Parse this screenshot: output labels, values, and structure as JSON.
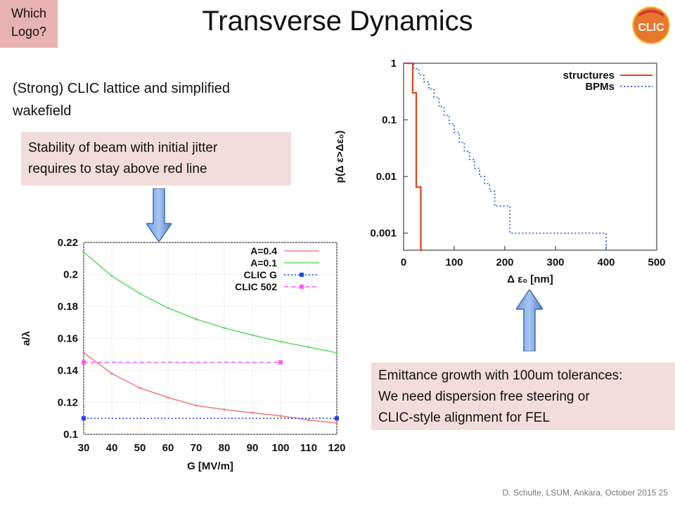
{
  "badge": {
    "text_line1": "Which",
    "text_line2": "Logo?"
  },
  "slide": {
    "title": "Transverse Dynamics"
  },
  "logo": {
    "text": "CLIC",
    "icon": "clic-logo-icon",
    "colors": [
      "#e8772e",
      "#d63a2a",
      "#f4c542"
    ]
  },
  "intro": {
    "line1": "(Strong) CLIC lattice and simplified",
    "line2": "wakefield"
  },
  "note_stability": {
    "line1": "Stability of beam with initial jitter",
    "line2": "requires to stay above red line"
  },
  "note_emittance": {
    "line1": "Emittance growth with 100um tolerances:",
    "line2": "We need dispersion free steering or",
    "line3": "CLIC-style alignment for FEL"
  },
  "arrows": {
    "icon_down": "down-arrow-icon",
    "icon_up": "up-arrow-icon",
    "color": "#4f7fc4"
  },
  "footer": {
    "text": "D. Schulte, LSUM, Ankara, October 2015",
    "page": "25"
  },
  "chart_data": [
    {
      "type": "line",
      "xlabel": "G [MV/m]",
      "ylabel": "a/λ",
      "xlim": [
        30,
        120
      ],
      "ylim": [
        0.1,
        0.22
      ],
      "xticks": [
        30,
        40,
        50,
        60,
        70,
        80,
        90,
        100,
        110,
        120
      ],
      "yticks": [
        0.1,
        0.12,
        0.14,
        0.16,
        0.18,
        0.2,
        0.22
      ],
      "xtick_labels": [
        "30",
        "40",
        "50",
        "60",
        "70",
        "80",
        "90",
        "100",
        "110",
        "120"
      ],
      "ytick_labels": [
        "0.1",
        "0.12",
        "0.14",
        "0.16",
        "0.18",
        "0.2",
        "0.22"
      ],
      "grid": true,
      "legend_position": "top-right",
      "series": [
        {
          "name": "A=0.4",
          "color": "#f08080",
          "style": "solid",
          "marker": "dot",
          "x": [
            30,
            40,
            50,
            60,
            70,
            80,
            90,
            100,
            110,
            120
          ],
          "y": [
            0.151,
            0.138,
            0.129,
            0.123,
            0.118,
            0.1155,
            0.1135,
            0.1115,
            0.109,
            0.107
          ]
        },
        {
          "name": "A=0.1",
          "color": "#66dd66",
          "style": "solid",
          "marker": "dot",
          "x": [
            30,
            40,
            50,
            60,
            70,
            80,
            90,
            100,
            110,
            120
          ],
          "y": [
            0.214,
            0.199,
            0.188,
            0.179,
            0.172,
            0.1665,
            0.162,
            0.158,
            0.1545,
            0.151
          ]
        },
        {
          "name": "CLIC G",
          "color": "#2244ee",
          "style": "dotted",
          "marker": "square",
          "x": [
            30,
            120
          ],
          "y": [
            0.11,
            0.11
          ]
        },
        {
          "name": "CLIC 502",
          "color": "#ff55ff",
          "style": "dashed",
          "marker": "square",
          "x": [
            30,
            100
          ],
          "y": [
            0.145,
            0.145
          ]
        }
      ]
    },
    {
      "type": "line",
      "xlabel": "Δ ε₀ [nm]",
      "ylabel": "p(Δ ε>Δε₀)",
      "xlim": [
        0,
        500
      ],
      "ylim": [
        0.0005,
        1
      ],
      "yscale": "log",
      "xticks": [
        0,
        100,
        200,
        300,
        400,
        500
      ],
      "yticks": [
        1,
        0.1,
        0.01,
        0.001
      ],
      "xtick_labels": [
        "0",
        "100",
        "200",
        "300",
        "400",
        "500"
      ],
      "ytick_labels": [
        "1",
        "0.1",
        "0.01",
        "0.001"
      ],
      "grid": false,
      "legend_position": "top-right",
      "series": [
        {
          "name": "structures",
          "color": "#e8401c",
          "style": "step-solid",
          "x": [
            0,
            5,
            5,
            18,
            18,
            25,
            25,
            34,
            34,
            38,
            38
          ],
          "y": [
            1,
            1,
            1,
            1,
            0.3,
            0.03,
            0.0065,
            0.0065,
            0.0005,
            0.0005,
            0.0005
          ]
        },
        {
          "name": "BPMs",
          "color": "#4466dd",
          "style": "step-dotted",
          "x": [
            0,
            10,
            20,
            30,
            40,
            50,
            60,
            70,
            80,
            90,
            100,
            110,
            120,
            130,
            140,
            150,
            160,
            170,
            180,
            190,
            200,
            210,
            400,
            400
          ],
          "y": [
            1,
            1,
            0.8,
            0.62,
            0.47,
            0.35,
            0.25,
            0.17,
            0.12,
            0.085,
            0.06,
            0.04,
            0.028,
            0.02,
            0.014,
            0.01,
            0.0075,
            0.0055,
            0.003,
            0.003,
            0.003,
            0.001,
            0.001,
            0.0005
          ]
        }
      ]
    }
  ]
}
